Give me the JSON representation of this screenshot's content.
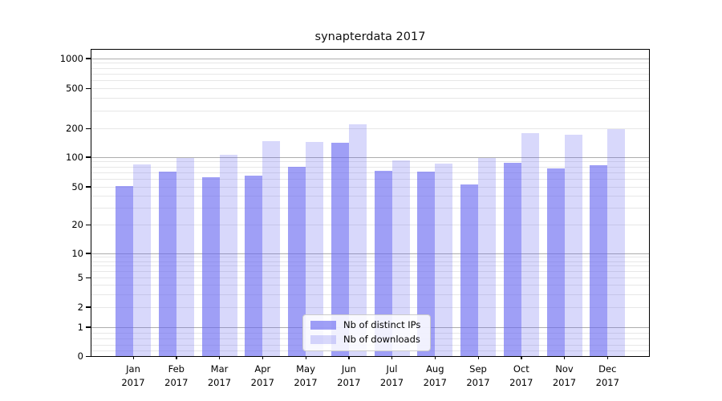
{
  "title": "synapterdata 2017",
  "chart_data": {
    "type": "bar",
    "title": "synapterdata 2017",
    "x_months": [
      "Jan",
      "Feb",
      "Mar",
      "Apr",
      "May",
      "Jun",
      "Jul",
      "Aug",
      "Sep",
      "Oct",
      "Nov",
      "Dec"
    ],
    "x_year": "2017",
    "series": [
      {
        "name": "Nb of distinct IPs",
        "color": "rgba(100,100,240,0.62)",
        "values": [
          51,
          71,
          62,
          65,
          79,
          140,
          72,
          71,
          53,
          88,
          76,
          82
        ]
      },
      {
        "name": "Nb of downloads",
        "color": "rgba(100,100,240,0.25)",
        "values": [
          84,
          97,
          106,
          148,
          143,
          218,
          92,
          86,
          97,
          178,
          172,
          197
        ]
      }
    ],
    "y_axis": {
      "scale": "symlog",
      "tick_values": [
        0,
        1,
        2,
        5,
        10,
        20,
        50,
        100,
        200,
        500,
        1000
      ],
      "tick_labels": [
        "0",
        "1",
        "2",
        "5",
        "10",
        "20",
        "50",
        "100",
        "200",
        "500",
        "1000"
      ]
    },
    "legend": {
      "position": "lower center",
      "entries": [
        "Nb of distinct IPs",
        "Nb of downloads"
      ]
    },
    "grid": true,
    "colors": {
      "major_grid": "#adadad",
      "minor_grid": "#e7e7e7",
      "spine": "#000000",
      "background": "#ffffff"
    }
  }
}
